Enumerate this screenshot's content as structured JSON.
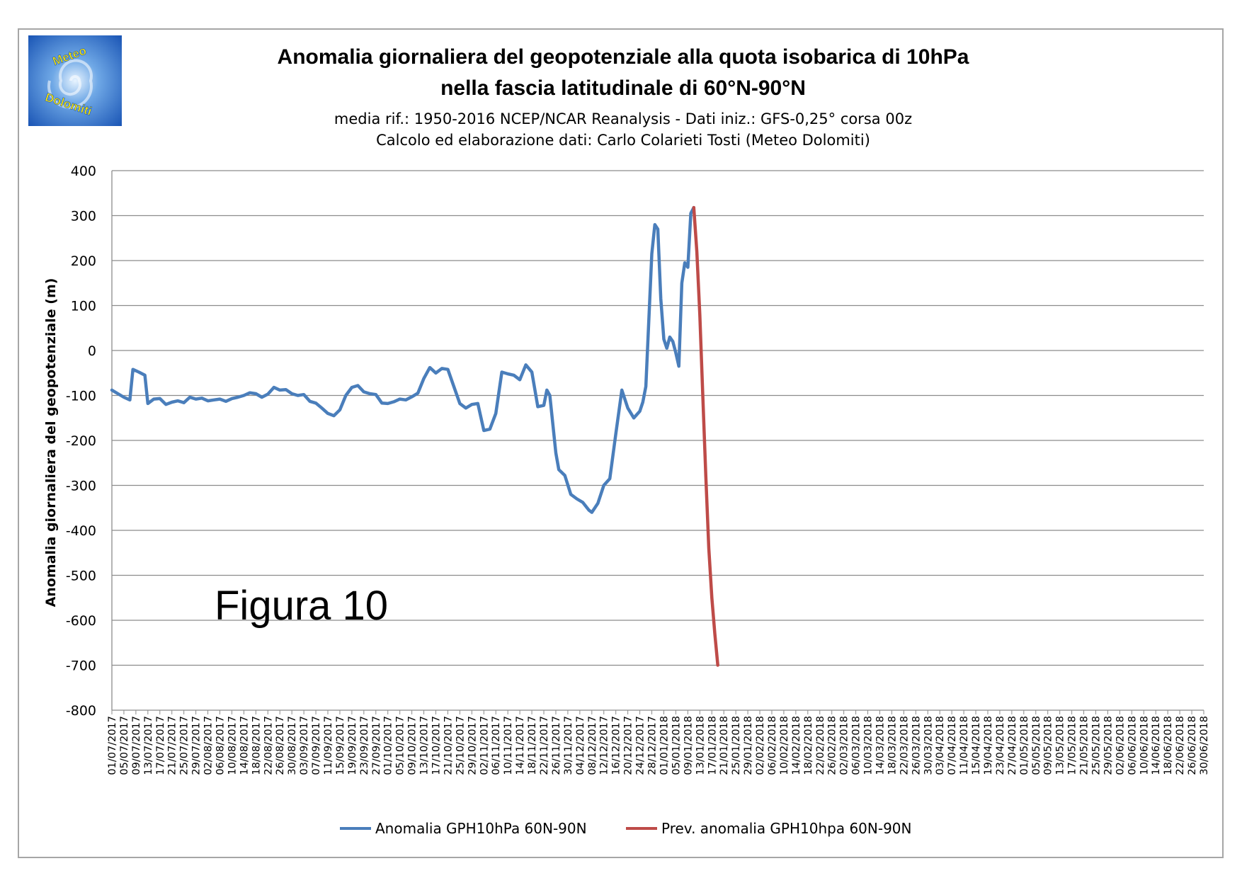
{
  "header": {
    "title_line1": "Anomalia giornaliera del geopotenziale alla quota isobarica di 10hPa",
    "title_line2": "nella fascia latitudinale di 60°N-90°N",
    "subtitle_line1": "media rif.: 1950-2016 NCEP/NCAR Reanalysis - Dati  iniz.: GFS-0,25° corsa 00z",
    "subtitle_line2": "Calcolo ed elaborazione dati: Carlo Colarieti Tosti (Meteo Dolomiti)"
  },
  "logo": {
    "word1": "Meteo",
    "word2": "Dolomiti"
  },
  "figure_label": "Figura 10",
  "chart_data": {
    "type": "line",
    "ylabel": "Anomalia giornaliera del geopotenziale (m)",
    "xlabel": "",
    "ylim": [
      -800,
      400
    ],
    "yticks": [
      "400",
      "300",
      "200",
      "100",
      "0",
      "-100",
      "-200",
      "-300",
      "-400",
      "-500",
      "-600",
      "-700",
      "-800"
    ],
    "grid": true,
    "legend_position": "bottom",
    "x_range": [
      "01/07/2017",
      "30/06/2018"
    ],
    "x_tick_labels": [
      "01/07/2017",
      "05/07/2017",
      "09/07/2017",
      "13/07/2017",
      "17/07/2017",
      "21/07/2017",
      "25/07/2017",
      "29/07/2017",
      "02/08/2017",
      "06/08/2017",
      "10/08/2017",
      "14/08/2017",
      "18/08/2017",
      "22/08/2017",
      "26/08/2017",
      "30/08/2017",
      "03/09/2017",
      "07/09/2017",
      "11/09/2017",
      "15/09/2017",
      "19/09/2017",
      "23/09/2017",
      "27/09/2017",
      "01/10/2017",
      "05/10/2017",
      "09/10/2017",
      "13/10/2017",
      "17/10/2017",
      "21/10/2017",
      "25/10/2017",
      "29/10/2017",
      "02/11/2017",
      "06/11/2017",
      "10/11/2017",
      "14/11/2017",
      "18/11/2017",
      "22/11/2017",
      "26/11/2017",
      "30/11/2017",
      "04/12/2017",
      "08/12/2017",
      "12/12/2017",
      "16/12/2017",
      "20/12/2017",
      "24/12/2017",
      "28/12/2017",
      "01/01/2018",
      "05/01/2018",
      "09/01/2018",
      "13/01/2018",
      "17/01/2018",
      "21/01/2018",
      "25/01/2018",
      "29/01/2018",
      "02/02/2018",
      "06/02/2018",
      "10/02/2018",
      "14/02/2018",
      "18/02/2018",
      "22/02/2018",
      "26/02/2018",
      "02/03/2018",
      "06/03/2018",
      "10/03/2018",
      "14/03/2018",
      "18/03/2018",
      "22/03/2018",
      "26/03/2018",
      "30/03/2018",
      "03/04/2018",
      "07/04/2018",
      "11/04/2018",
      "15/04/2018",
      "19/04/2018",
      "23/04/2018",
      "27/04/2018",
      "01/05/2018",
      "05/05/2018",
      "09/05/2018",
      "13/05/2018",
      "17/05/2018",
      "21/05/2018",
      "25/05/2018",
      "29/05/2018",
      "02/06/2018",
      "06/06/2018",
      "10/06/2018",
      "14/06/2018",
      "18/06/2018",
      "22/06/2018",
      "26/06/2018",
      "30/06/2018"
    ],
    "series": [
      {
        "name": "Anomalia GPH10hPa 60N-90N",
        "color": "#4a7ebb",
        "points": [
          [
            "01/07/2017",
            -88
          ],
          [
            "03/07/2017",
            -96
          ],
          [
            "05/07/2017",
            -104
          ],
          [
            "07/07/2017",
            -110
          ],
          [
            "08/07/2017",
            -42
          ],
          [
            "10/07/2017",
            -48
          ],
          [
            "12/07/2017",
            -55
          ],
          [
            "13/07/2017",
            -118
          ],
          [
            "15/07/2017",
            -108
          ],
          [
            "17/07/2017",
            -107
          ],
          [
            "19/07/2017",
            -120
          ],
          [
            "21/07/2017",
            -115
          ],
          [
            "23/07/2017",
            -112
          ],
          [
            "25/07/2017",
            -116
          ],
          [
            "27/07/2017",
            -104
          ],
          [
            "29/07/2017",
            -108
          ],
          [
            "31/07/2017",
            -106
          ],
          [
            "02/08/2017",
            -112
          ],
          [
            "04/08/2017",
            -110
          ],
          [
            "06/08/2017",
            -108
          ],
          [
            "08/08/2017",
            -113
          ],
          [
            "10/08/2017",
            -107
          ],
          [
            "12/08/2017",
            -104
          ],
          [
            "14/08/2017",
            -100
          ],
          [
            "16/08/2017",
            -94
          ],
          [
            "18/08/2017",
            -96
          ],
          [
            "20/08/2017",
            -104
          ],
          [
            "22/08/2017",
            -97
          ],
          [
            "24/08/2017",
            -82
          ],
          [
            "26/08/2017",
            -88
          ],
          [
            "28/08/2017",
            -87
          ],
          [
            "30/08/2017",
            -96
          ],
          [
            "01/09/2017",
            -100
          ],
          [
            "03/09/2017",
            -98
          ],
          [
            "05/09/2017",
            -113
          ],
          [
            "07/09/2017",
            -117
          ],
          [
            "09/09/2017",
            -128
          ],
          [
            "11/09/2017",
            -140
          ],
          [
            "13/09/2017",
            -145
          ],
          [
            "15/09/2017",
            -132
          ],
          [
            "17/09/2017",
            -100
          ],
          [
            "19/09/2017",
            -82
          ],
          [
            "21/09/2017",
            -78
          ],
          [
            "23/09/2017",
            -92
          ],
          [
            "25/09/2017",
            -96
          ],
          [
            "27/09/2017",
            -98
          ],
          [
            "29/09/2017",
            -117
          ],
          [
            "01/10/2017",
            -118
          ],
          [
            "03/10/2017",
            -114
          ],
          [
            "05/10/2017",
            -108
          ],
          [
            "07/10/2017",
            -110
          ],
          [
            "09/10/2017",
            -103
          ],
          [
            "11/10/2017",
            -95
          ],
          [
            "13/10/2017",
            -62
          ],
          [
            "15/10/2017",
            -38
          ],
          [
            "17/10/2017",
            -50
          ],
          [
            "19/10/2017",
            -40
          ],
          [
            "21/10/2017",
            -42
          ],
          [
            "23/10/2017",
            -80
          ],
          [
            "25/10/2017",
            -118
          ],
          [
            "27/10/2017",
            -128
          ],
          [
            "29/10/2017",
            -120
          ],
          [
            "31/10/2017",
            -118
          ],
          [
            "02/11/2017",
            -178
          ],
          [
            "04/11/2017",
            -175
          ],
          [
            "06/11/2017",
            -140
          ],
          [
            "08/11/2017",
            -48
          ],
          [
            "10/11/2017",
            -52
          ],
          [
            "12/11/2017",
            -55
          ],
          [
            "14/11/2017",
            -65
          ],
          [
            "16/11/2017",
            -32
          ],
          [
            "18/11/2017",
            -48
          ],
          [
            "20/11/2017",
            -125
          ],
          [
            "22/11/2017",
            -122
          ],
          [
            "23/11/2017",
            -88
          ],
          [
            "24/11/2017",
            -100
          ],
          [
            "26/11/2017",
            -228
          ],
          [
            "27/11/2017",
            -265
          ],
          [
            "29/11/2017",
            -278
          ],
          [
            "01/12/2017",
            -320
          ],
          [
            "03/12/2017",
            -330
          ],
          [
            "05/12/2017",
            -338
          ],
          [
            "07/12/2017",
            -355
          ],
          [
            "08/12/2017",
            -360
          ],
          [
            "10/12/2017",
            -340
          ],
          [
            "12/12/2017",
            -300
          ],
          [
            "14/12/2017",
            -285
          ],
          [
            "16/12/2017",
            -185
          ],
          [
            "18/12/2017",
            -88
          ],
          [
            "20/12/2017",
            -128
          ],
          [
            "22/12/2017",
            -150
          ],
          [
            "24/12/2017",
            -135
          ],
          [
            "25/12/2017",
            -115
          ],
          [
            "26/12/2017",
            -80
          ],
          [
            "28/12/2017",
            215
          ],
          [
            "29/12/2017",
            280
          ],
          [
            "30/12/2017",
            270
          ],
          [
            "31/12/2017",
            115
          ],
          [
            "01/01/2018",
            25
          ],
          [
            "02/01/2018",
            5
          ],
          [
            "03/01/2018",
            30
          ],
          [
            "04/01/2018",
            20
          ],
          [
            "05/01/2018",
            -5
          ],
          [
            "06/01/2018",
            -35
          ],
          [
            "07/01/2018",
            150
          ],
          [
            "08/01/2018",
            195
          ],
          [
            "09/01/2018",
            185
          ],
          [
            "10/01/2018",
            305
          ],
          [
            "11/01/2018",
            318
          ]
        ]
      },
      {
        "name": "Prev. anomalia GPH10hpa 60N-90N",
        "color": "#be4b48",
        "points": [
          [
            "11/01/2018",
            318
          ],
          [
            "12/01/2018",
            220
          ],
          [
            "13/01/2018",
            80
          ],
          [
            "14/01/2018",
            -100
          ],
          [
            "15/01/2018",
            -280
          ],
          [
            "16/01/2018",
            -440
          ],
          [
            "17/01/2018",
            -550
          ],
          [
            "18/01/2018",
            -630
          ],
          [
            "19/01/2018",
            -700
          ]
        ]
      }
    ]
  }
}
